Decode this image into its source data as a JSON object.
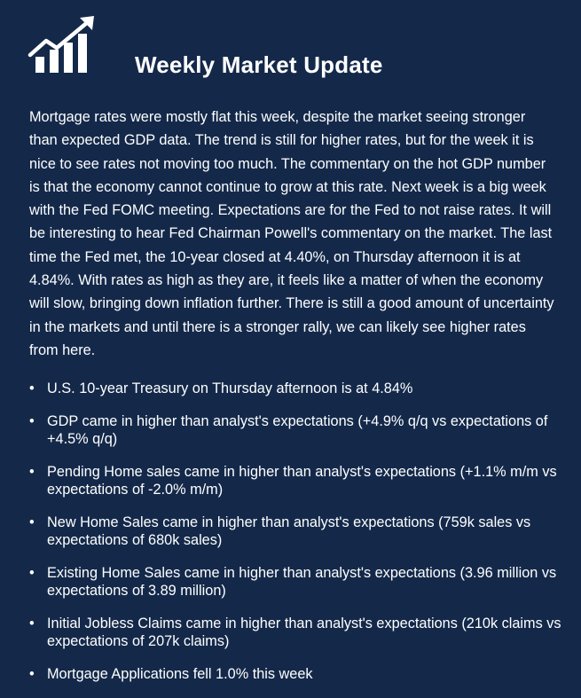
{
  "header": {
    "title": "Weekly Market Update",
    "logo_icon": "bar-chart-trend-icon"
  },
  "intro": "Mortgage rates were mostly flat this week, despite the market seeing stronger than expected GDP data. The trend is still for higher rates, but for the week it is nice to see rates not moving too much. The commentary on the hot GDP number is that the economy cannot continue to grow at this rate. Next week is a big week with the Fed FOMC meeting. Expectations are for the Fed to not raise rates. It will be interesting to hear Fed Chairman Powell's commentary on the market. The last time the Fed met, the 10-year closed at 4.40%, on Thursday afternoon it is at 4.84%. With rates as high as they are, it feels like a matter of when the economy will slow, bringing down inflation further. There is still a good amount of uncertainty in the markets and until there is a stronger rally, we can likely see higher rates from here.",
  "bullets": [
    "U.S. 10-year Treasury on Thursday afternoon is at 4.84%",
    "GDP came in higher than analyst's expectations (+4.9% q/q vs expectations of +4.5% q/q)",
    "Pending Home sales came in higher than analyst's expectations (+1.1% m/m vs expectations of -2.0% m/m)",
    "New Home Sales came in higher than analyst's expectations (759k sales vs expectations of 680k sales)",
    "Existing Home Sales came in higher than analyst's expectations (3.96 million vs expectations of 3.89 million)",
    "Initial Jobless Claims came in higher than analyst's expectations (210k claims vs expectations of 207k claims)",
    "Mortgage Applications fell 1.0% this week"
  ],
  "bullet_glyph": "•",
  "colors": {
    "background": "#14294a",
    "text": "#ffffff"
  }
}
